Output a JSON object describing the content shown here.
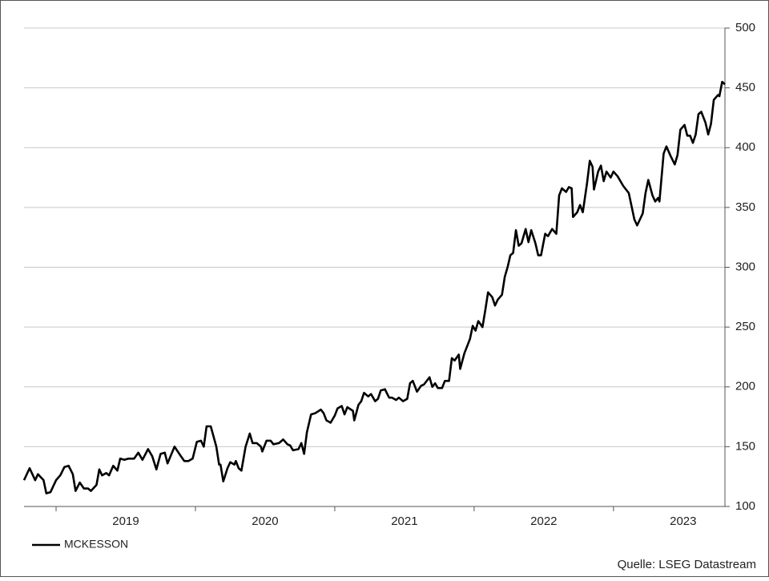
{
  "chart_data": {
    "type": "line",
    "source": "Quelle: LSEG Datastream",
    "x": [
      2018.77,
      2018.81,
      2018.85,
      2018.87,
      2018.91,
      2018.93,
      2018.96,
      2019.0,
      2019.03,
      2019.06,
      2019.09,
      2019.12,
      2019.14,
      2019.17,
      2019.2,
      2019.23,
      2019.25,
      2019.29,
      2019.31,
      2019.33,
      2019.36,
      2019.38,
      2019.41,
      2019.44,
      2019.46,
      2019.49,
      2019.52,
      2019.56,
      2019.59,
      2019.62,
      2019.66,
      2019.69,
      2019.72,
      2019.75,
      2019.78,
      2019.8,
      2019.85,
      2019.89,
      2019.92,
      2019.95,
      2019.98,
      2020.01,
      2020.04,
      2020.06,
      2020.08,
      2020.11,
      2020.15,
      2020.17,
      2020.18,
      2020.2,
      2020.23,
      2020.25,
      2020.28,
      2020.29,
      2020.31,
      2020.33,
      2020.36,
      2020.39,
      2020.41,
      2020.44,
      2020.47,
      2020.48,
      2020.51,
      2020.54,
      2020.56,
      2020.6,
      2020.63,
      2020.66,
      2020.68,
      2020.7,
      2020.74,
      2020.76,
      2020.78,
      2020.8,
      2020.83,
      2020.86,
      2020.9,
      2020.92,
      2020.94,
      2020.97,
      2021.0,
      2021.02,
      2021.05,
      2021.07,
      2021.09,
      2021.13,
      2021.14,
      2021.17,
      2021.19,
      2021.21,
      2021.24,
      2021.26,
      2021.29,
      2021.31,
      2021.33,
      2021.36,
      2021.39,
      2021.41,
      2021.44,
      2021.46,
      2021.49,
      2021.52,
      2021.54,
      2021.56,
      2021.59,
      2021.62,
      2021.64,
      2021.68,
      2021.7,
      2021.72,
      2021.74,
      2021.77,
      2021.79,
      2021.82,
      2021.84,
      2021.86,
      2021.89,
      2021.9,
      2021.93,
      2021.97,
      2021.99,
      2022.01,
      2022.03,
      2022.06,
      2022.08,
      2022.1,
      2022.13,
      2022.15,
      2022.17,
      2022.2,
      2022.22,
      2022.24,
      2022.26,
      2022.28,
      2022.3,
      2022.32,
      2022.34,
      2022.37,
      2022.39,
      2022.41,
      2022.44,
      2022.46,
      2022.48,
      2022.51,
      2022.53,
      2022.56,
      2022.59,
      2022.61,
      2022.63,
      2022.66,
      2022.68,
      2022.7,
      2022.71,
      2022.74,
      2022.76,
      2022.78,
      2022.81,
      2022.83,
      2022.85,
      2022.86,
      2022.89,
      2022.91,
      2022.93,
      2022.95,
      2022.98,
      2023.0,
      2023.03,
      2023.07,
      2023.11,
      2023.15,
      2023.17,
      2023.21,
      2023.23,
      2023.25,
      2023.28,
      2023.3,
      2023.32,
      2023.33,
      2023.36,
      2023.38,
      2023.41,
      2023.44,
      2023.46,
      2023.48,
      2023.51,
      2023.53,
      2023.55,
      2023.57,
      2023.59,
      2023.61,
      2023.63,
      2023.66,
      2023.68,
      2023.7,
      2023.72,
      2023.75,
      2023.76,
      2023.78,
      2023.8
    ],
    "series": [
      {
        "name": "MCKESSON",
        "color": "#000000",
        "values": [
          122,
          132,
          122,
          127,
          122,
          111,
          112,
          122,
          126,
          133,
          134,
          127,
          113,
          120,
          115,
          115,
          113,
          118,
          131,
          126,
          128,
          126,
          134,
          130,
          140,
          139,
          140,
          140,
          145,
          139,
          148,
          142,
          131,
          144,
          145,
          136,
          150,
          143,
          138,
          138,
          140,
          154,
          155,
          150,
          167,
          167,
          150,
          135,
          135,
          121,
          132,
          137,
          135,
          138,
          132,
          130,
          150,
          161,
          153,
          153,
          150,
          146,
          155,
          155,
          152,
          153,
          156,
          152,
          151,
          147,
          148,
          153,
          144,
          162,
          177,
          178,
          181,
          178,
          172,
          170,
          176,
          182,
          184,
          177,
          183,
          180,
          172,
          185,
          188,
          195,
          192,
          194,
          188,
          190,
          197,
          198,
          191,
          191,
          189,
          191,
          188,
          190,
          203,
          205,
          196,
          201,
          202,
          208,
          200,
          203,
          199,
          199,
          205,
          205,
          224,
          222,
          227,
          215,
          228,
          240,
          251,
          247,
          255,
          250,
          264,
          279,
          275,
          268,
          273,
          277,
          292,
          300,
          310,
          312,
          331,
          318,
          320,
          332,
          321,
          331,
          320,
          310,
          310,
          328,
          326,
          332,
          328,
          360,
          366,
          363,
          367,
          366,
          342,
          346,
          352,
          346,
          370,
          389,
          384,
          365,
          380,
          385,
          372,
          380,
          375,
          380,
          376,
          368,
          362,
          340,
          335,
          345,
          362,
          373,
          360,
          355,
          358,
          355,
          395,
          401,
          393,
          386,
          394,
          415,
          419,
          410,
          410,
          404,
          411,
          428,
          430,
          421,
          411,
          420,
          440,
          444,
          443,
          455,
          453
        ]
      }
    ],
    "xlim": [
      2018.77,
      2023.8
    ],
    "xticks": [
      2019,
      2020,
      2021,
      2022,
      2023
    ],
    "ylim": [
      100,
      500
    ],
    "yticks": [
      100,
      150,
      200,
      250,
      300,
      350,
      400,
      450,
      500
    ],
    "grid": true
  }
}
